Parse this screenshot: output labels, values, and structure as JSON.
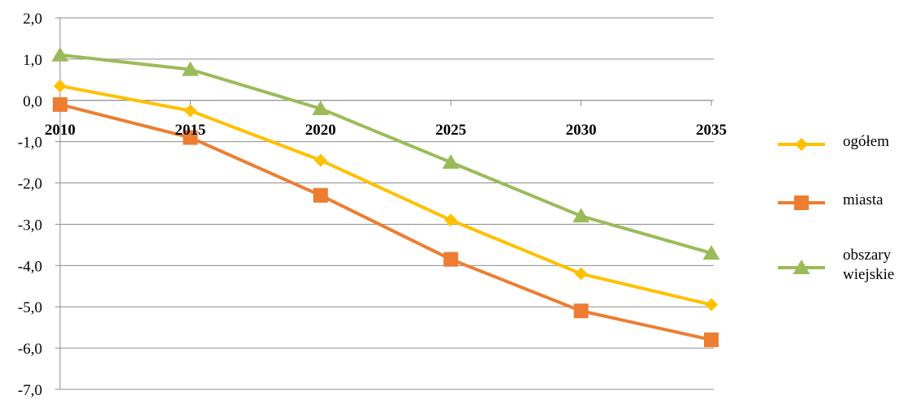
{
  "chart_data": {
    "type": "line",
    "title": "",
    "xlabel": "",
    "ylabel": "",
    "categories": [
      "2010",
      "2015",
      "2020",
      "2025",
      "2030",
      "2035"
    ],
    "ylim": [
      -7.0,
      2.0
    ],
    "ytick_step": 1.0,
    "y_ticks": [
      "2,0",
      "1,0",
      "0,0",
      "-1,0",
      "-2,0",
      "-3,0",
      "-4,0",
      "-5,0",
      "-6,0",
      "-7,0"
    ],
    "x_axis_crosses_at": 0.0,
    "grid": true,
    "legend_position": "right",
    "series": [
      {
        "name": "ogółem",
        "legend_lines": [
          "ogółem"
        ],
        "values": [
          0.35,
          -0.25,
          -1.45,
          -2.9,
          -4.2,
          -4.95
        ],
        "color": "#FFC000",
        "marker": "diamond"
      },
      {
        "name": "miasta",
        "legend_lines": [
          "miasta"
        ],
        "values": [
          -0.1,
          -0.9,
          -2.3,
          -3.85,
          -5.1,
          -5.8
        ],
        "color": "#ED7D31",
        "marker": "square"
      },
      {
        "name": "obszary wiejskie",
        "legend_lines": [
          "obszary",
          "wiejskie"
        ],
        "values": [
          1.1,
          0.75,
          -0.2,
          -1.5,
          -2.8,
          -3.7
        ],
        "color": "#9BBB59",
        "marker": "triangle"
      }
    ]
  }
}
